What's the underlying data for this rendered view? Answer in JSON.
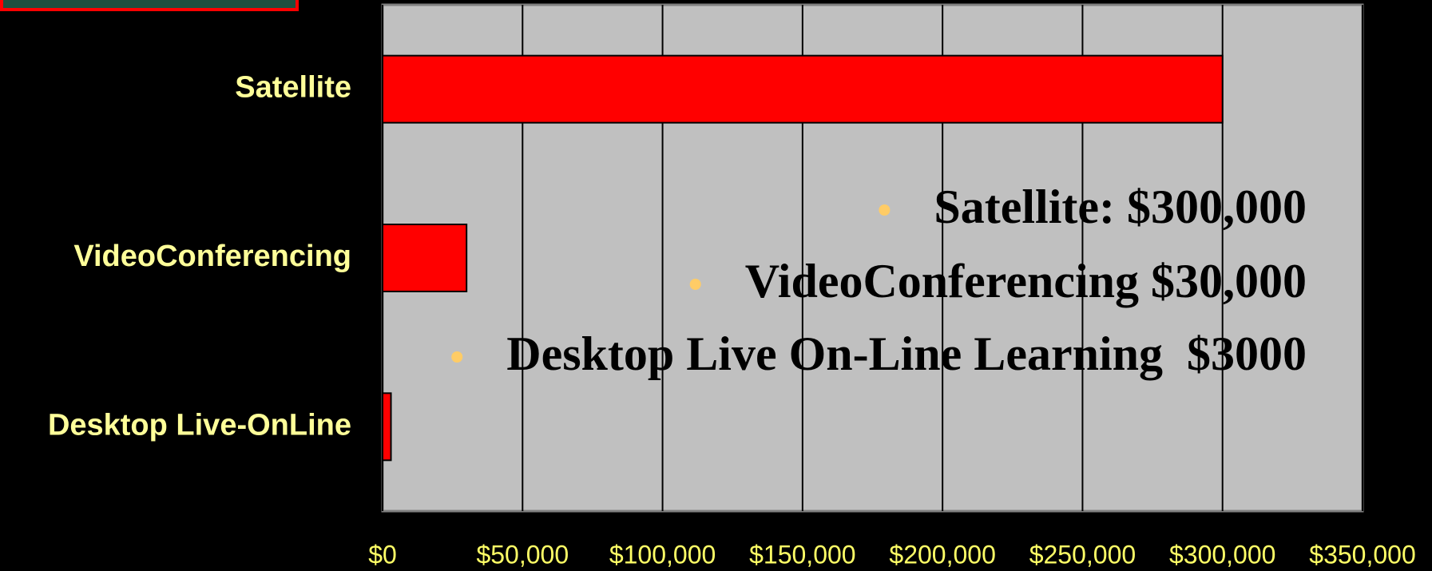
{
  "chart_data": {
    "type": "bar",
    "orientation": "horizontal",
    "categories": [
      "Satellite",
      "VideoConferencing",
      "Desktop Live-OnLine"
    ],
    "values": [
      300000,
      30000,
      3000
    ],
    "color": "#ff0000",
    "xlim": [
      0,
      350000
    ],
    "xticks": [
      {
        "value": 0,
        "label": "$0"
      },
      {
        "value": 50000,
        "label": "$50,000"
      },
      {
        "value": 100000,
        "label": "$100,000"
      },
      {
        "value": 150000,
        "label": "$150,000"
      },
      {
        "value": 200000,
        "label": "$200,000"
      },
      {
        "value": 250000,
        "label": "$250,000"
      },
      {
        "value": 300000,
        "label": "$300,000"
      },
      {
        "value": 350000,
        "label": "$350,000"
      }
    ],
    "grid": true,
    "annotations": [
      "Satellite: $300,000",
      "VideoConferencing $30,000",
      "Desktop Live On-Line Learning  $3000"
    ]
  }
}
